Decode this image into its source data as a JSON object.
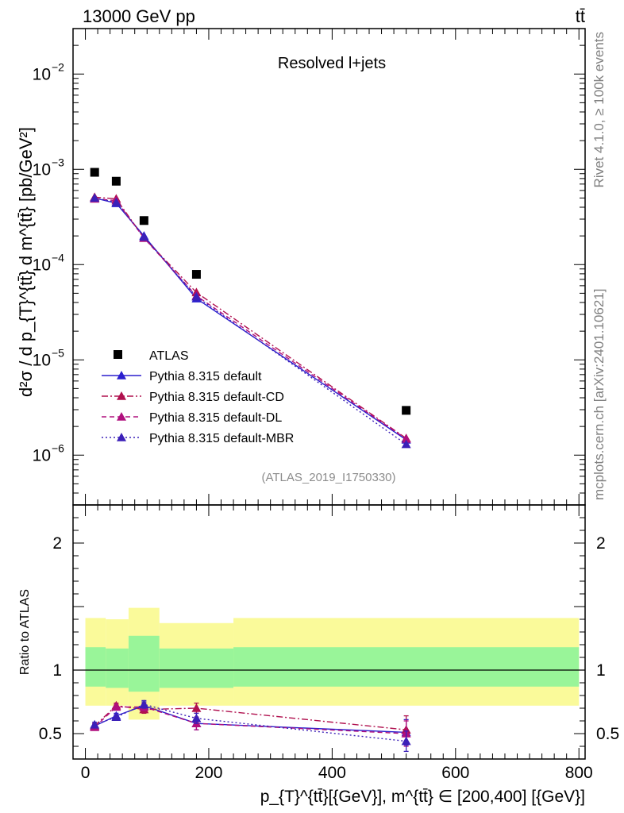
{
  "header": {
    "energy_label": "13000 GeV pp",
    "process_label": "tt̄"
  },
  "side_labels": {
    "rivet": "Rivet 4.1.0, ≥ 100k events",
    "mcplots": "mcplots.cern.ch [arXiv:2401.10621]"
  },
  "colors": {
    "atlas": "#000000",
    "default": "#2b1fce",
    "cd": "#b0104e",
    "dl": "#b0107e",
    "mbr": "#3b20b8",
    "band_inner": "#99f599",
    "band_outer": "#fafa9a"
  },
  "chart_data": [
    {
      "type": "scatter",
      "title": "Resolved l+jets",
      "ref_label": "(ATLAS_2019_I1750330)",
      "ylabel": "d²σ / d p_{T}^{tt̄} d m^{tt̄} [pb/GeV²]",
      "yscale": "log",
      "ylim": [
        3e-07,
        0.03
      ],
      "xlim": [
        -20,
        810
      ],
      "y_ticks": [
        {
          "value": 0.01,
          "mantissa": "10",
          "exponent": "−2"
        },
        {
          "value": 0.001,
          "mantissa": "10",
          "exponent": "−3"
        },
        {
          "value": 0.0001,
          "mantissa": "10",
          "exponent": "−4"
        },
        {
          "value": 1e-05,
          "mantissa": "10",
          "exponent": "−5"
        },
        {
          "value": 1e-06,
          "mantissa": "10",
          "exponent": "−6"
        }
      ],
      "x": [
        15,
        50,
        95,
        180,
        520
      ],
      "series": [
        {
          "name": "ATLAS",
          "key": "atlas",
          "style": "data",
          "values": [
            0.00093,
            0.00075,
            0.00029,
            7.9e-05,
            2.95e-06
          ]
        },
        {
          "name": "Pythia 8.315 default",
          "key": "default",
          "style": "solid",
          "values": [
            0.0005,
            0.00044,
            0.0002,
            4.4e-05,
            1.45e-06
          ]
        },
        {
          "name": "Pythia 8.315 default-CD",
          "key": "cd",
          "style": "dashdot",
          "values": [
            0.00051,
            0.00049,
            0.00019,
            5.1e-05,
            1.5e-06
          ]
        },
        {
          "name": "Pythia 8.315 default-DL",
          "key": "dl",
          "style": "dashed",
          "values": [
            0.00049,
            0.00047,
            0.00019,
            4.7e-05,
            1.48e-06
          ]
        },
        {
          "name": "Pythia 8.315 default-MBR",
          "key": "mbr",
          "style": "dotted",
          "values": [
            0.0005,
            0.00045,
            0.000195,
            4.6e-05,
            1.3e-06
          ]
        }
      ]
    },
    {
      "type": "scatter",
      "ylabel": "Ratio to ATLAS",
      "ylim": [
        0.3,
        2.3
      ],
      "xlim": [
        -20,
        810
      ],
      "xlabel": "p_{T}^{tt̄}[{GeV}], m^{tt̄} ∈ [200,400] [{GeV}]",
      "x_ticks": [
        0,
        200,
        400,
        600,
        800
      ],
      "y_ticks": [
        0.5,
        1,
        2
      ],
      "x_tick_labels": [
        "0",
        "200",
        "400",
        "600",
        "800"
      ],
      "y_tick_labels": [
        "0.5",
        "1",
        "2"
      ],
      "bins": [
        [
          0,
          33
        ],
        [
          33,
          70
        ],
        [
          70,
          120
        ],
        [
          120,
          240
        ],
        [
          240,
          800
        ]
      ],
      "band_inner": [
        [
          0.87,
          1.18
        ],
        [
          0.86,
          1.17
        ],
        [
          0.83,
          1.27
        ],
        [
          0.86,
          1.17
        ],
        [
          0.87,
          1.18
        ]
      ],
      "band_outer": [
        [
          0.72,
          1.41
        ],
        [
          0.72,
          1.4
        ],
        [
          0.61,
          1.49
        ],
        [
          0.72,
          1.37
        ],
        [
          0.72,
          1.41
        ]
      ],
      "x": [
        15,
        50,
        95,
        180,
        520
      ],
      "series": [
        {
          "name": "Pythia 8.315 default",
          "key": "default",
          "style": "solid",
          "values": [
            0.56,
            0.64,
            0.72,
            0.58,
            0.51
          ],
          "err": [
            0.02,
            0.02,
            0.03,
            0.05,
            0.1
          ]
        },
        {
          "name": "Pythia 8.315 default-CD",
          "key": "cd",
          "style": "dashdot",
          "values": [
            0.56,
            0.72,
            0.69,
            0.7,
            0.53
          ],
          "err": [
            0.02,
            0.02,
            0.03,
            0.04,
            0.11
          ]
        },
        {
          "name": "Pythia 8.315 default-DL",
          "key": "dl",
          "style": "dashed",
          "values": [
            0.55,
            0.71,
            0.71,
            0.58,
            0.5
          ],
          "err": [
            0.02,
            0.02,
            0.03,
            0.05,
            0.1
          ]
        },
        {
          "name": "Pythia 8.315 default-MBR",
          "key": "mbr",
          "style": "dotted",
          "values": [
            0.57,
            0.63,
            0.73,
            0.62,
            0.44
          ],
          "err": [
            0.02,
            0.02,
            0.03,
            0.04,
            0.08
          ]
        }
      ]
    }
  ]
}
